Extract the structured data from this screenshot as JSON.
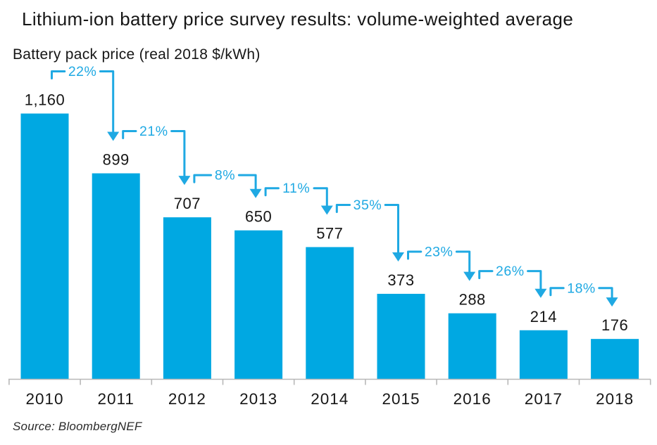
{
  "title": "Lithium-ion battery price survey results: volume-weighted average",
  "subtitle": "Battery pack price (real 2018 $/kWh)",
  "source": "Source: BloombergNEF",
  "chart_data": {
    "type": "bar",
    "title": "Lithium-ion battery price survey results: volume-weighted average",
    "subtitle": "Battery pack price (real 2018 $/kWh)",
    "categories": [
      "2010",
      "2011",
      "2012",
      "2013",
      "2014",
      "2015",
      "2016",
      "2017",
      "2018"
    ],
    "values": [
      1160,
      899,
      707,
      650,
      577,
      373,
      288,
      214,
      176
    ],
    "value_labels": [
      "1,160",
      "899",
      "707",
      "650",
      "577",
      "373",
      "288",
      "214",
      "176"
    ],
    "pct_decline_labels": [
      "22%",
      "21%",
      "8%",
      "11%",
      "35%",
      "23%",
      "26%",
      "18%"
    ],
    "xlabel": "",
    "ylabel": "Battery pack price (real 2018 $/kWh)",
    "ylim": [
      0,
      1200
    ],
    "grid": false,
    "legend": "none",
    "source": "Source: BloombergNEF",
    "colors": {
      "bar": "#00a8e2",
      "annotation": "#1fa9e3",
      "axis": "#b8b8b8",
      "text": "#161616"
    }
  }
}
